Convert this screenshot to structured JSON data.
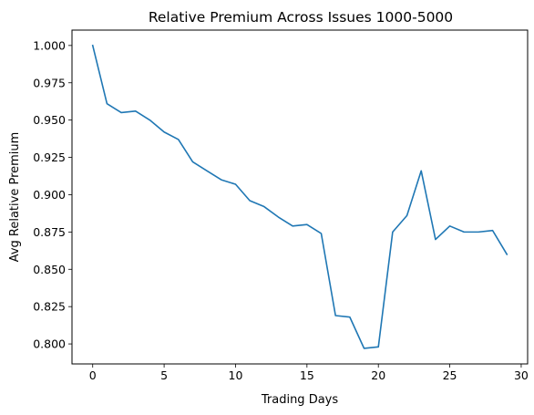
{
  "chart_data": {
    "type": "line",
    "title": "Relative Premium Across Issues 1000-5000",
    "xlabel": "Trading Days",
    "ylabel": "Avg Relative Premium",
    "xlim": [
      -1.45,
      30.45
    ],
    "ylim": [
      0.7866,
      1.0103
    ],
    "x_ticks": [
      0,
      5,
      10,
      15,
      20,
      25,
      30
    ],
    "y_ticks": [
      0.8,
      0.825,
      0.85,
      0.875,
      0.9,
      0.925,
      0.95,
      0.975,
      1.0
    ],
    "x_tick_labels": [
      "0",
      "5",
      "10",
      "15",
      "20",
      "25",
      "30"
    ],
    "y_tick_labels": [
      "0.800",
      "0.825",
      "0.850",
      "0.875",
      "0.900",
      "0.925",
      "0.950",
      "0.975",
      "1.000"
    ],
    "grid": false,
    "legend": "none",
    "line_color": "#1f77b4",
    "series": [
      {
        "x": [
          0,
          1,
          2,
          3,
          4,
          5,
          6,
          7,
          8,
          9,
          10,
          11,
          12,
          13,
          14,
          15,
          16,
          17,
          18,
          19,
          20,
          21,
          22,
          23,
          24,
          25,
          26,
          27,
          28,
          29
        ],
        "values": [
          1.0,
          0.961,
          0.955,
          0.956,
          0.95,
          0.942,
          0.937,
          0.922,
          0.916,
          0.91,
          0.907,
          0.896,
          0.892,
          0.885,
          0.879,
          0.88,
          0.874,
          0.819,
          0.818,
          0.797,
          0.798,
          0.875,
          0.886,
          0.916,
          0.87,
          0.879,
          0.875,
          0.875,
          0.876,
          0.86
        ]
      }
    ]
  }
}
